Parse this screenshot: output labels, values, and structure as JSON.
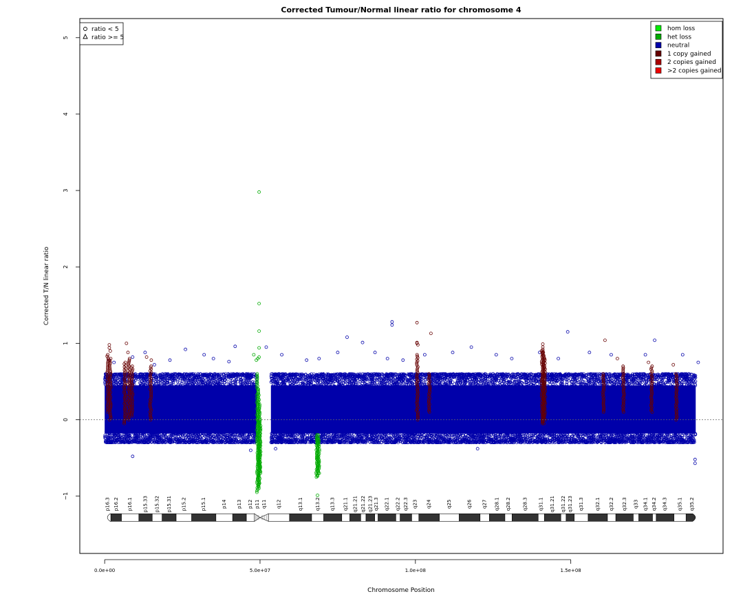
{
  "chart_data": {
    "type": "scatter",
    "title": "Corrected Tumour/Normal linear ratio for chromosome  4",
    "xlabel": "Chromosome Position",
    "ylabel": "Corrected T/N linear ratio",
    "xlim": [
      -8000000,
      199000000
    ],
    "ylim": [
      -1.75,
      5.25
    ],
    "x_ticks": [
      0,
      50000000,
      100000000,
      150000000
    ],
    "x_tick_labels": [
      "0.0e+00",
      "5.0e+07",
      "1.0e+08",
      "1.5e+08"
    ],
    "y_ticks": [
      -1,
      0,
      1,
      2,
      3,
      4,
      5
    ],
    "y_tick_labels": [
      "−1",
      "0",
      "1",
      "2",
      "3",
      "4",
      "5"
    ],
    "baseline": 0,
    "grid": false,
    "legend_shape": {
      "placement": "top-left",
      "items": [
        {
          "marker": "circle",
          "label": "ratio < 5"
        },
        {
          "marker": "triangle",
          "label": "ratio >= 5"
        }
      ]
    },
    "legend_state": {
      "placement": "top-right",
      "items": [
        {
          "label": "hom loss",
          "color": "#00ee00"
        },
        {
          "label": "het loss",
          "color": "#00aa00"
        },
        {
          "label": "neutral",
          "color": "#0000aa"
        },
        {
          "label": "1 copy gained",
          "color": "#660000"
        },
        {
          "label": "2 copies gained",
          "color": "#aa0000"
        },
        {
          "label": ">2 copies gained",
          "color": "#ee0000"
        }
      ]
    },
    "series": [
      {
        "name": "neutral",
        "color": "#0000aa",
        "bulk_ranges": [
          [
            0,
            49000000
          ],
          [
            53500000,
            190200000
          ]
        ],
        "bulk_y_range": [
          -0.3,
          0.6
        ],
        "points": [
          [
            1500000,
            0.78
          ],
          [
            3000000,
            0.75
          ],
          [
            9000000,
            0.82
          ],
          [
            13000000,
            0.88
          ],
          [
            16000000,
            0.72
          ],
          [
            21000000,
            0.78
          ],
          [
            26000000,
            0.92
          ],
          [
            32000000,
            0.85
          ],
          [
            35000000,
            0.8
          ],
          [
            40000000,
            0.76
          ],
          [
            42000000,
            0.96
          ],
          [
            52000000,
            0.95
          ],
          [
            57000000,
            0.85
          ],
          [
            65000000,
            0.78
          ],
          [
            69000000,
            0.8
          ],
          [
            75000000,
            0.88
          ],
          [
            78000000,
            1.08
          ],
          [
            83000000,
            1.01
          ],
          [
            87000000,
            0.88
          ],
          [
            91000000,
            0.8
          ],
          [
            92500000,
            1.28
          ],
          [
            92500000,
            1.24
          ],
          [
            96000000,
            0.78
          ],
          [
            103000000,
            0.85
          ],
          [
            112000000,
            0.88
          ],
          [
            118000000,
            0.95
          ],
          [
            126000000,
            0.85
          ],
          [
            131000000,
            0.8
          ],
          [
            140000000,
            0.88
          ],
          [
            146000000,
            0.8
          ],
          [
            149000000,
            1.15
          ],
          [
            156000000,
            0.88
          ],
          [
            163000000,
            0.85
          ],
          [
            174000000,
            0.85
          ],
          [
            177000000,
            1.04
          ],
          [
            186000000,
            0.85
          ],
          [
            191000000,
            0.75
          ],
          [
            190000000,
            -0.57
          ],
          [
            190000000,
            -0.52
          ],
          [
            9000000,
            -0.48
          ],
          [
            47000000,
            -0.4
          ],
          [
            55000000,
            -0.38
          ],
          [
            120000000,
            -0.38
          ]
        ]
      },
      {
        "name": "1 copy gained",
        "color": "#660000",
        "points": [
          [
            1500000,
            0.98
          ],
          [
            1500000,
            0.94
          ],
          [
            1800000,
            0.9
          ],
          [
            7000000,
            1.0
          ],
          [
            7500000,
            0.88
          ],
          [
            8000000,
            0.8
          ],
          [
            13500000,
            0.82
          ],
          [
            15000000,
            0.78
          ],
          [
            100500000,
            1.27
          ],
          [
            100500000,
            1.01
          ],
          [
            100500000,
            1.0
          ],
          [
            100800000,
            0.98
          ],
          [
            105000000,
            1.13
          ],
          [
            141000000,
            0.99
          ],
          [
            141000000,
            0.95
          ],
          [
            141000000,
            0.92
          ],
          [
            141000000,
            0.88
          ],
          [
            141300000,
            0.84
          ],
          [
            161000000,
            1.04
          ],
          [
            165000000,
            0.8
          ],
          [
            175000000,
            0.75
          ],
          [
            183000000,
            0.72
          ]
        ],
        "vertical_runs": [
          [
            1000000,
            0.1,
            0.85
          ],
          [
            1800000,
            0.0,
            0.8
          ],
          [
            6500000,
            -0.05,
            0.75
          ],
          [
            7800000,
            0.0,
            0.78
          ],
          [
            8800000,
            0.05,
            0.7
          ],
          [
            14800000,
            0.0,
            0.7
          ],
          [
            100600000,
            0.0,
            0.85
          ],
          [
            104500000,
            0.1,
            0.6
          ],
          [
            140800000,
            -0.05,
            0.9
          ],
          [
            141200000,
            -0.05,
            0.9
          ],
          [
            141600000,
            0.0,
            0.8
          ],
          [
            160500000,
            0.1,
            0.6
          ],
          [
            167000000,
            0.1,
            0.7
          ],
          [
            176000000,
            0.1,
            0.7
          ],
          [
            184000000,
            0.0,
            0.6
          ]
        ]
      },
      {
        "name": "het loss",
        "color": "#00aa00",
        "points": [
          [
            49700000,
            2.98
          ],
          [
            49700000,
            1.52
          ],
          [
            49700000,
            1.16
          ],
          [
            49700000,
            0.94
          ],
          [
            49700000,
            0.82
          ],
          [
            49300000,
            0.8
          ],
          [
            48800000,
            0.78
          ],
          [
            48000000,
            0.85
          ],
          [
            68500000,
            -0.99
          ],
          [
            68500000,
            -0.74
          ]
        ],
        "vertical_runs": [
          [
            49200000,
            -0.95,
            0.6
          ],
          [
            49500000,
            -0.9,
            0.4
          ],
          [
            49800000,
            -0.85,
            0.2
          ],
          [
            50000000,
            -0.7,
            0.0
          ],
          [
            68300000,
            -0.75,
            -0.2
          ],
          [
            68600000,
            -0.72,
            -0.2
          ],
          [
            68900000,
            -0.7,
            -0.25
          ]
        ]
      }
    ],
    "ideogram": {
      "y": -1.28,
      "centromere": 50000000,
      "bands": [
        {
          "name": "p16.3",
          "start": 0,
          "end": 2000000,
          "stain": "gneg"
        },
        {
          "name": "p16.2",
          "start": 2000000,
          "end": 5400000,
          "stain": "gpos"
        },
        {
          "name": "p16.1",
          "start": 5400000,
          "end": 11000000,
          "stain": "gneg"
        },
        {
          "name": "p15.33",
          "start": 11000000,
          "end": 15300000,
          "stain": "gpos"
        },
        {
          "name": "p15.32",
          "start": 15300000,
          "end": 18500000,
          "stain": "gneg"
        },
        {
          "name": "p15.31",
          "start": 18500000,
          "end": 23000000,
          "stain": "gpos"
        },
        {
          "name": "p15.2",
          "start": 23000000,
          "end": 28000000,
          "stain": "gneg"
        },
        {
          "name": "p15.1",
          "start": 28000000,
          "end": 35800000,
          "stain": "gpos"
        },
        {
          "name": "p14",
          "start": 35800000,
          "end": 41200000,
          "stain": "gneg"
        },
        {
          "name": "p13",
          "start": 41200000,
          "end": 45600000,
          "stain": "gpos"
        },
        {
          "name": "p12",
          "start": 45600000,
          "end": 48200000,
          "stain": "gneg"
        },
        {
          "name": "p11",
          "start": 48200000,
          "end": 50000000,
          "stain": "acen"
        },
        {
          "name": "q11",
          "start": 50000000,
          "end": 52700000,
          "stain": "acen"
        },
        {
          "name": "q12",
          "start": 52700000,
          "end": 59500000,
          "stain": "gneg"
        },
        {
          "name": "q13.1",
          "start": 59500000,
          "end": 66600000,
          "stain": "gpos"
        },
        {
          "name": "q13.2",
          "start": 66600000,
          "end": 70500000,
          "stain": "gneg"
        },
        {
          "name": "q13.3",
          "start": 70500000,
          "end": 76300000,
          "stain": "gpos"
        },
        {
          "name": "q21.1",
          "start": 76300000,
          "end": 78900000,
          "stain": "gneg"
        },
        {
          "name": "q21.21",
          "start": 78900000,
          "end": 82400000,
          "stain": "gpos"
        },
        {
          "name": "q21.22",
          "start": 82400000,
          "end": 84100000,
          "stain": "gneg"
        },
        {
          "name": "q21.23",
          "start": 84100000,
          "end": 86900000,
          "stain": "gpos"
        },
        {
          "name": "q21.3",
          "start": 86900000,
          "end": 88000000,
          "stain": "gneg"
        },
        {
          "name": "q22.1",
          "start": 88000000,
          "end": 93700000,
          "stain": "gpos"
        },
        {
          "name": "q22.2",
          "start": 93700000,
          "end": 95100000,
          "stain": "gneg"
        },
        {
          "name": "q22.3",
          "start": 95100000,
          "end": 98800000,
          "stain": "gpos"
        },
        {
          "name": "q23",
          "start": 98800000,
          "end": 101100000,
          "stain": "gneg"
        },
        {
          "name": "q24",
          "start": 101100000,
          "end": 107700000,
          "stain": "gpos"
        },
        {
          "name": "q25",
          "start": 107700000,
          "end": 114100000,
          "stain": "gneg"
        },
        {
          "name": "q26",
          "start": 114100000,
          "end": 120800000,
          "stain": "gpos"
        },
        {
          "name": "q27",
          "start": 120800000,
          "end": 123800000,
          "stain": "gneg"
        },
        {
          "name": "q28.1",
          "start": 123800000,
          "end": 128800000,
          "stain": "gpos"
        },
        {
          "name": "q28.2",
          "start": 128800000,
          "end": 131100000,
          "stain": "gneg"
        },
        {
          "name": "q28.3",
          "start": 131100000,
          "end": 139500000,
          "stain": "gpos"
        },
        {
          "name": "q31.1",
          "start": 139500000,
          "end": 141500000,
          "stain": "gneg"
        },
        {
          "name": "q31.21",
          "start": 141500000,
          "end": 146800000,
          "stain": "gpos"
        },
        {
          "name": "q31.22",
          "start": 146800000,
          "end": 148500000,
          "stain": "gneg"
        },
        {
          "name": "q31.23",
          "start": 148500000,
          "end": 151100000,
          "stain": "gpos"
        },
        {
          "name": "q31.3",
          "start": 151100000,
          "end": 155600000,
          "stain": "gneg"
        },
        {
          "name": "q32.1",
          "start": 155600000,
          "end": 161800000,
          "stain": "gpos"
        },
        {
          "name": "q32.2",
          "start": 161800000,
          "end": 164500000,
          "stain": "gneg"
        },
        {
          "name": "q32.3",
          "start": 164500000,
          "end": 170100000,
          "stain": "gpos"
        },
        {
          "name": "q33",
          "start": 170100000,
          "end": 171900000,
          "stain": "gneg"
        },
        {
          "name": "q34.1",
          "start": 171900000,
          "end": 176300000,
          "stain": "gpos"
        },
        {
          "name": "q34.2",
          "start": 176300000,
          "end": 177500000,
          "stain": "gneg"
        },
        {
          "name": "q34.3",
          "start": 177500000,
          "end": 183200000,
          "stain": "gpos"
        },
        {
          "name": "q35.1",
          "start": 183200000,
          "end": 187100000,
          "stain": "gneg"
        },
        {
          "name": "q35.2",
          "start": 187100000,
          "end": 191000000,
          "stain": "gpos"
        }
      ]
    }
  }
}
